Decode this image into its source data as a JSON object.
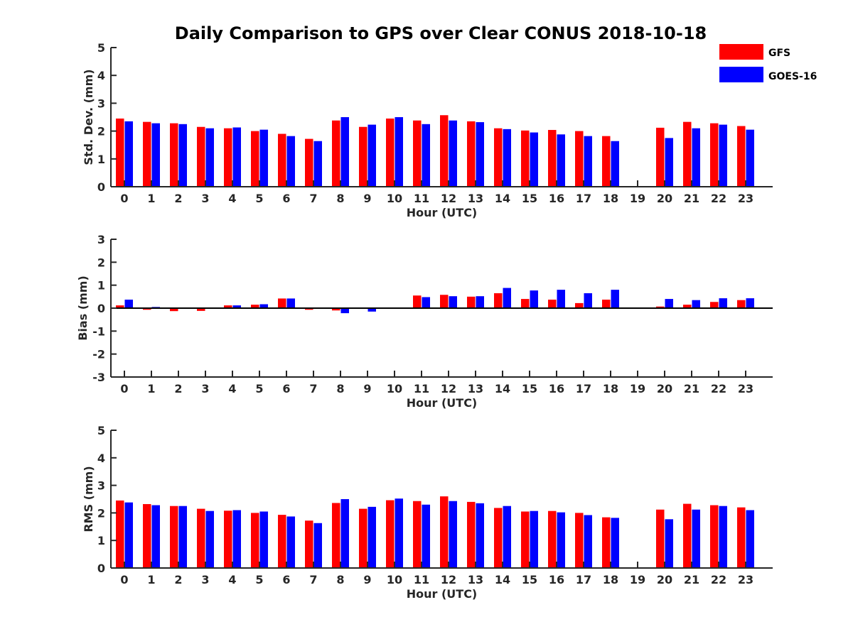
{
  "chart_data": {
    "title": "Daily Comparison to GPS over Clear CONUS 2018-10-18",
    "type": "bar",
    "categories": [
      "0",
      "1",
      "2",
      "3",
      "4",
      "5",
      "6",
      "7",
      "8",
      "9",
      "10",
      "11",
      "12",
      "13",
      "14",
      "15",
      "16",
      "17",
      "18",
      "19",
      "20",
      "21",
      "22",
      "23"
    ],
    "legend": {
      "position": "top-right",
      "entries": [
        {
          "name": "GFS",
          "color": "#ff0000"
        },
        {
          "name": "GOES-16",
          "color": "#0000ff"
        }
      ]
    },
    "panels": [
      {
        "id": "std",
        "ylabel": "Std. Dev. (mm)",
        "xlabel": "Hour (UTC)",
        "ylim": [
          0,
          5
        ],
        "yticks": [
          0,
          1,
          2,
          3,
          4,
          5
        ],
        "series": [
          {
            "name": "GFS",
            "color": "#ff0000",
            "values": [
              2.45,
              2.33,
              2.28,
              2.15,
              2.1,
              2.0,
              1.9,
              1.72,
              2.38,
              2.15,
              2.45,
              2.38,
              2.57,
              2.35,
              2.1,
              2.02,
              2.04,
              2.0,
              1.82,
              null,
              2.12,
              2.33,
              2.28,
              2.18
            ]
          },
          {
            "name": "GOES-16",
            "color": "#0000ff",
            "values": [
              2.35,
              2.28,
              2.25,
              2.1,
              2.13,
              2.05,
              1.82,
              1.64,
              2.5,
              2.23,
              2.5,
              2.25,
              2.38,
              2.32,
              2.07,
              1.95,
              1.88,
              1.82,
              1.64,
              null,
              1.75,
              2.1,
              2.23,
              2.05
            ]
          }
        ]
      },
      {
        "id": "bias",
        "ylabel": "Bias (mm)",
        "xlabel": "Hour (UTC)",
        "ylim": [
          -3,
          3
        ],
        "yticks": [
          -3,
          -2,
          -1,
          0,
          1,
          2,
          3
        ],
        "series": [
          {
            "name": "GFS",
            "color": "#ff0000",
            "values": [
              0.12,
              -0.07,
              -0.13,
              -0.12,
              0.12,
              0.15,
              0.42,
              -0.07,
              -0.1,
              0.0,
              0.0,
              0.55,
              0.58,
              0.5,
              0.65,
              0.4,
              0.37,
              0.22,
              0.37,
              null,
              0.07,
              0.15,
              0.27,
              0.35
            ]
          },
          {
            "name": "GOES-16",
            "color": "#0000ff",
            "values": [
              0.37,
              0.05,
              -0.02,
              -0.02,
              0.12,
              0.17,
              0.42,
              0.0,
              -0.22,
              -0.15,
              0.0,
              0.48,
              0.52,
              0.52,
              0.88,
              0.77,
              0.8,
              0.65,
              0.8,
              null,
              0.4,
              0.35,
              0.43,
              0.43
            ]
          }
        ]
      },
      {
        "id": "rms",
        "ylabel": "RMS (mm)",
        "xlabel": "Hour (UTC)",
        "ylim": [
          0,
          5
        ],
        "yticks": [
          0,
          1,
          2,
          3,
          4,
          5
        ],
        "series": [
          {
            "name": "GFS",
            "color": "#ff0000",
            "values": [
              2.45,
              2.32,
              2.25,
              2.15,
              2.08,
              2.0,
              1.93,
              1.72,
              2.36,
              2.15,
              2.46,
              2.43,
              2.6,
              2.4,
              2.18,
              2.05,
              2.07,
              2.0,
              1.84,
              null,
              2.12,
              2.33,
              2.28,
              2.2
            ]
          },
          {
            "name": "GOES-16",
            "color": "#0000ff",
            "values": [
              2.38,
              2.28,
              2.25,
              2.07,
              2.1,
              2.05,
              1.87,
              1.63,
              2.5,
              2.22,
              2.52,
              2.3,
              2.43,
              2.35,
              2.25,
              2.07,
              2.02,
              1.92,
              1.82,
              null,
              1.77,
              2.12,
              2.25,
              2.1
            ]
          }
        ]
      }
    ]
  }
}
